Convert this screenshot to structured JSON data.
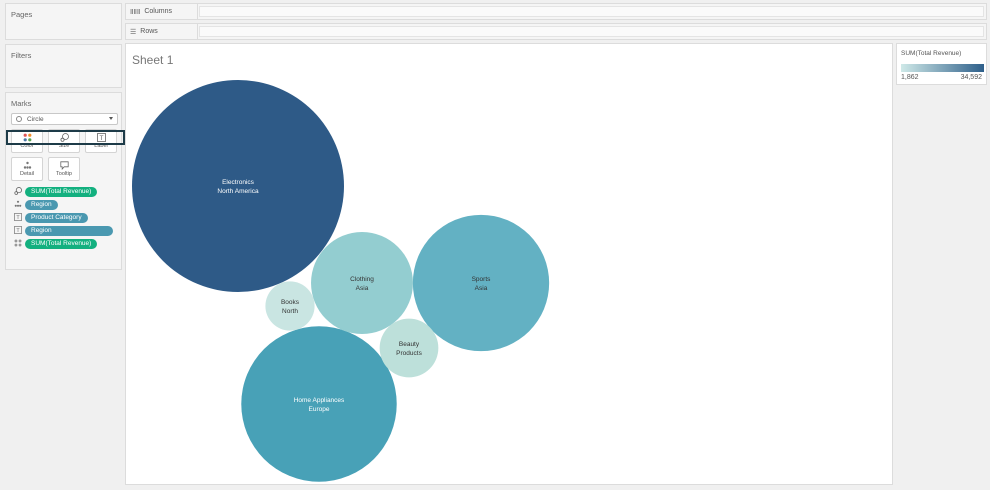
{
  "pages": {
    "title": "Pages"
  },
  "filters": {
    "title": "Filters"
  },
  "marks": {
    "title": "Marks",
    "mark_type": "Circle",
    "cards": [
      {
        "label": "Color",
        "icon": "color-dots-icon"
      },
      {
        "label": "Size",
        "icon": "size-icon"
      },
      {
        "label": "Label",
        "icon": "label-icon"
      },
      {
        "label": "Detail",
        "icon": "detail-icon"
      },
      {
        "label": "Tooltip",
        "icon": "tooltip-icon"
      }
    ],
    "fields": [
      {
        "icon": "size-icon",
        "label": "SUM(Total Revenue)",
        "color": "#13b07f"
      },
      {
        "icon": "detail-icon",
        "label": "Region",
        "color": "#4a98b0"
      },
      {
        "icon": "label-icon",
        "label": "Product Category",
        "color": "#4a98b0"
      },
      {
        "icon": "label-icon",
        "label": "Region",
        "color": "#4a98b0"
      },
      {
        "icon": "color-dots-icon",
        "label": "SUM(Total Revenue)",
        "color": "#13b07f"
      }
    ]
  },
  "shelves": {
    "columns": "Columns",
    "rows": "Rows"
  },
  "sheet": {
    "title": "Sheet 1"
  },
  "legend": {
    "title": "SUM(Total Revenue)",
    "min": "1,862",
    "max": "34,592",
    "color_low": "#cfe9e8",
    "color_high": "#2e5f8a"
  },
  "chart_data": {
    "type": "bubble",
    "size_measure": "SUM(Total Revenue)",
    "color_measure": "SUM(Total Revenue)",
    "color_range": [
      "#c9e5e2",
      "#2e5a87"
    ],
    "bubbles": [
      {
        "category": "Electronics",
        "region": "North America",
        "value": 34592,
        "color": "#2e5a87"
      },
      {
        "category": "Home Appliances",
        "region": "Europe",
        "value": 18600,
        "color": "#48a1b7"
      },
      {
        "category": "Sports",
        "region": "Asia",
        "value": 14300,
        "color": "#63b1c3"
      },
      {
        "category": "Clothing",
        "region": "Asia",
        "value": 8000,
        "color": "#93cdd0"
      },
      {
        "category": "Beauty",
        "region": "Products",
        "value": 2650,
        "color": "#bde0da"
      },
      {
        "category": "Books",
        "region": "North",
        "value": 1862,
        "color": "#c9e5e2"
      }
    ]
  }
}
